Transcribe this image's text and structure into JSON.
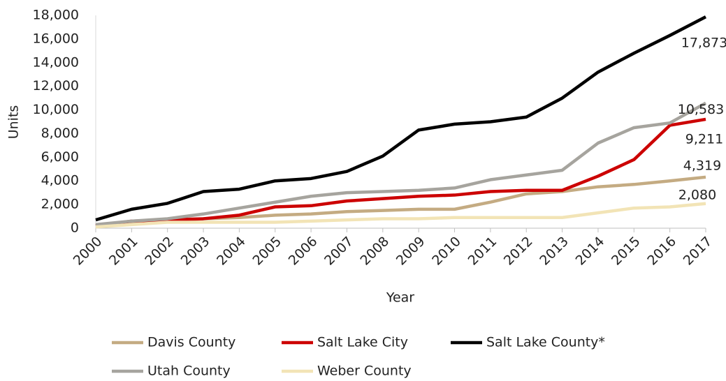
{
  "chart_data": {
    "type": "line",
    "x_label": "Year",
    "y_label": "Units",
    "categories": [
      "2000",
      "2001",
      "2002",
      "2003",
      "2004",
      "2005",
      "2006",
      "2007",
      "2008",
      "2009",
      "2010",
      "2011",
      "2012",
      "2013",
      "2014",
      "2015",
      "2016",
      "2017"
    ],
    "ylim": [
      0,
      18000
    ],
    "yticks": [
      0,
      {
        "value": 2000,
        "label": "2,000"
      },
      {
        "value": 4000,
        "label": "4,000"
      },
      {
        "value": 6000,
        "label": "6,000"
      },
      {
        "value": 8000,
        "label": "8,000"
      },
      {
        "value": 10000,
        "label": "10,000"
      },
      {
        "value": 12000,
        "label": "12,000"
      },
      {
        "value": 14000,
        "label": "14,000"
      },
      {
        "value": 16000,
        "label": "16,000"
      },
      {
        "value": 18000,
        "label": "18,000"
      }
    ],
    "grid": false,
    "legend": "bottom",
    "series": [
      {
        "name": "Davis County",
        "color": "#c4ab82",
        "values": [
          200,
          400,
          600,
          800,
          900,
          1100,
          1200,
          1400,
          1500,
          1600,
          1600,
          2200,
          2900,
          3100,
          3500,
          3700,
          4000,
          4319
        ],
        "value_labels": [
          null,
          null,
          null,
          null,
          null,
          null,
          null,
          null,
          null,
          null,
          null,
          null,
          null,
          null,
          null,
          null,
          null,
          "4,319"
        ]
      },
      {
        "name": "Salt Lake City",
        "color": "#cc0000",
        "values": [
          200,
          600,
          700,
          800,
          1100,
          1800,
          1900,
          2300,
          2500,
          2700,
          2800,
          3100,
          3200,
          3200,
          4400,
          5800,
          8700,
          9211
        ],
        "value_labels": [
          null,
          null,
          null,
          null,
          null,
          null,
          null,
          null,
          null,
          null,
          null,
          null,
          null,
          null,
          null,
          null,
          null,
          "9,211"
        ]
      },
      {
        "name": "Salt Lake County*",
        "color": "#000000",
        "values": [
          700,
          1600,
          2100,
          3100,
          3300,
          4000,
          4200,
          4800,
          6100,
          8300,
          8800,
          9000,
          9400,
          11000,
          13200,
          14800,
          16300,
          17873
        ],
        "value_labels": [
          null,
          null,
          null,
          null,
          null,
          null,
          null,
          null,
          null,
          null,
          null,
          null,
          null,
          null,
          null,
          null,
          null,
          "17,873"
        ]
      },
      {
        "name": "Utah County",
        "color": "#a6a49e",
        "values": [
          300,
          600,
          800,
          1200,
          1700,
          2200,
          2700,
          3000,
          3100,
          3200,
          3400,
          4100,
          4500,
          4900,
          7200,
          8500,
          8900,
          10583
        ],
        "value_labels": [
          null,
          null,
          null,
          null,
          null,
          null,
          null,
          null,
          null,
          null,
          null,
          null,
          null,
          null,
          null,
          null,
          null,
          "10,583"
        ]
      },
      {
        "name": "Weber County",
        "color": "#f2e4b6",
        "values": [
          100,
          300,
          500,
          500,
          500,
          500,
          600,
          700,
          800,
          800,
          900,
          900,
          900,
          900,
          1300,
          1700,
          1800,
          2080
        ],
        "value_labels": [
          null,
          null,
          null,
          null,
          null,
          null,
          null,
          null,
          null,
          null,
          null,
          null,
          null,
          null,
          null,
          null,
          null,
          "2,080"
        ]
      }
    ]
  }
}
